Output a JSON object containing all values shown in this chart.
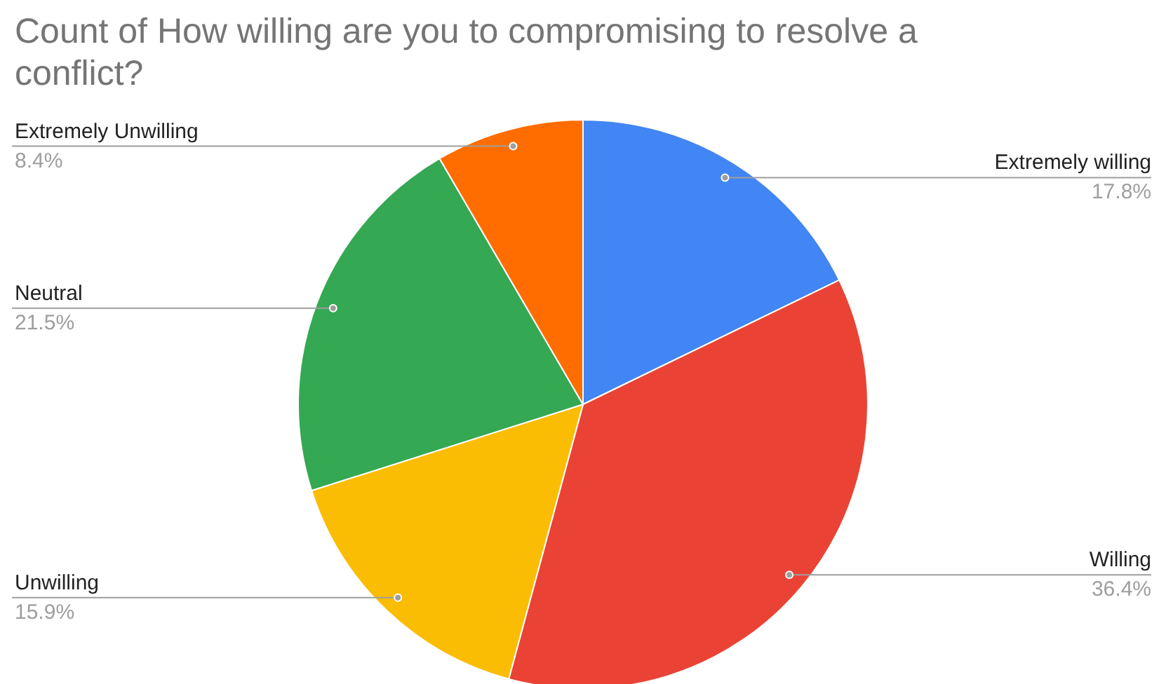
{
  "chart_data": {
    "type": "pie",
    "title": "Count of How willing are you to compromising to resolve a conflict?",
    "categories": [
      "Extremely willing",
      "Willing",
      "Unwilling",
      "Neutral",
      "Extremely Unwilling"
    ],
    "values": [
      17.8,
      36.4,
      15.9,
      21.5,
      8.4
    ],
    "value_labels": [
      "17.8%",
      "36.4%",
      "15.9%",
      "21.5%",
      "8.4%"
    ],
    "colors": [
      "#4285f4",
      "#ea4335",
      "#fbbc04",
      "#34a853",
      "#ff6d01"
    ]
  }
}
